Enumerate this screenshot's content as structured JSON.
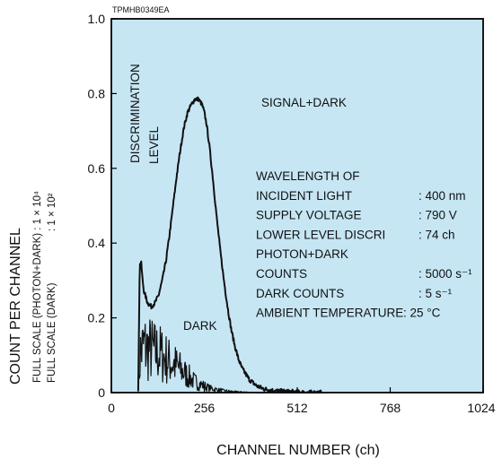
{
  "chart_data": {
    "type": "line",
    "code": "TPMHB0349EA",
    "xlabel": "CHANNEL NUMBER (ch)",
    "ylabel": "COUNT PER CHANNEL",
    "ylabel_sub1": "FULL SCALE (PHOTON+DARK) : 1 × 10⁴",
    "ylabel_sub2": ": 1 × 10²",
    "ylabel_sub2_prefix": "FULL SCALE (DARK)",
    "xlim": [
      0,
      1024
    ],
    "ylim": [
      0,
      1.0
    ],
    "x_ticks": [
      0,
      256,
      512,
      768,
      1024
    ],
    "y_ticks": [
      0,
      0.2,
      0.4,
      0.6,
      0.8,
      1.0
    ],
    "x_tick_labels": [
      "0",
      "256",
      "512",
      "768",
      "1024"
    ],
    "y_tick_labels": [
      "0",
      "0.2",
      "0.4",
      "0.6",
      "0.8",
      "1.0"
    ],
    "background_color": "#c6e6f4",
    "line_color": "#111111",
    "discrimination_level": {
      "label_line1": "DISCRIMINATION",
      "label_line2": "LEVEL",
      "channel": 74
    },
    "series": [
      {
        "name": "SIGNAL+DARK",
        "x": [
          74,
          78,
          82,
          86,
          90,
          100,
          110,
          120,
          130,
          140,
          150,
          160,
          170,
          180,
          190,
          200,
          210,
          220,
          230,
          240,
          250,
          256,
          262,
          270,
          280,
          290,
          300,
          310,
          320,
          330,
          340,
          350,
          360,
          380,
          400,
          420,
          440,
          460,
          480,
          500,
          520,
          540,
          580
        ],
        "y": [
          0.0,
          0.34,
          0.35,
          0.3,
          0.27,
          0.24,
          0.23,
          0.24,
          0.26,
          0.3,
          0.35,
          0.42,
          0.5,
          0.58,
          0.65,
          0.71,
          0.75,
          0.77,
          0.785,
          0.785,
          0.77,
          0.75,
          0.72,
          0.66,
          0.57,
          0.47,
          0.38,
          0.3,
          0.23,
          0.17,
          0.125,
          0.09,
          0.065,
          0.035,
          0.018,
          0.01,
          0.006,
          0.004,
          0.003,
          0.002,
          0.001,
          0.0,
          0.0
        ]
      },
      {
        "name": "DARK",
        "x": [
          74,
          80,
          90,
          100,
          110,
          120,
          130,
          140,
          150,
          160,
          170,
          180,
          190,
          200,
          210,
          220,
          230,
          240,
          250,
          260,
          270,
          280,
          290,
          300,
          310,
          320,
          340,
          360,
          380,
          400,
          420
        ],
        "y": [
          0.0,
          0.13,
          0.15,
          0.14,
          0.14,
          0.13,
          0.13,
          0.12,
          0.11,
          0.1,
          0.095,
          0.085,
          0.075,
          0.065,
          0.055,
          0.045,
          0.035,
          0.03,
          0.025,
          0.02,
          0.015,
          0.012,
          0.01,
          0.008,
          0.006,
          0.005,
          0.003,
          0.002,
          0.001,
          0.0,
          0.0
        ]
      }
    ],
    "annotations": {
      "signal_label": "SIGNAL+DARK",
      "dark_label": "DARK"
    },
    "conditions": [
      {
        "label": "WAVELENGTH OF",
        "value": ""
      },
      {
        "label": "INCIDENT LIGHT",
        "value": ": 400 nm"
      },
      {
        "label": "SUPPLY VOLTAGE",
        "value": ": 790 V"
      },
      {
        "label": "LOWER LEVEL DISCRI",
        "value": ": 74 ch"
      },
      {
        "label": "PHOTON+DARK",
        "value": ""
      },
      {
        "label": "COUNTS",
        "value": ": 5000 s⁻¹"
      },
      {
        "label": "DARK COUNTS",
        "value": ": 5 s⁻¹"
      },
      {
        "label": "AMBIENT TEMPERATURE",
        "value": ": 25 °C"
      }
    ]
  }
}
